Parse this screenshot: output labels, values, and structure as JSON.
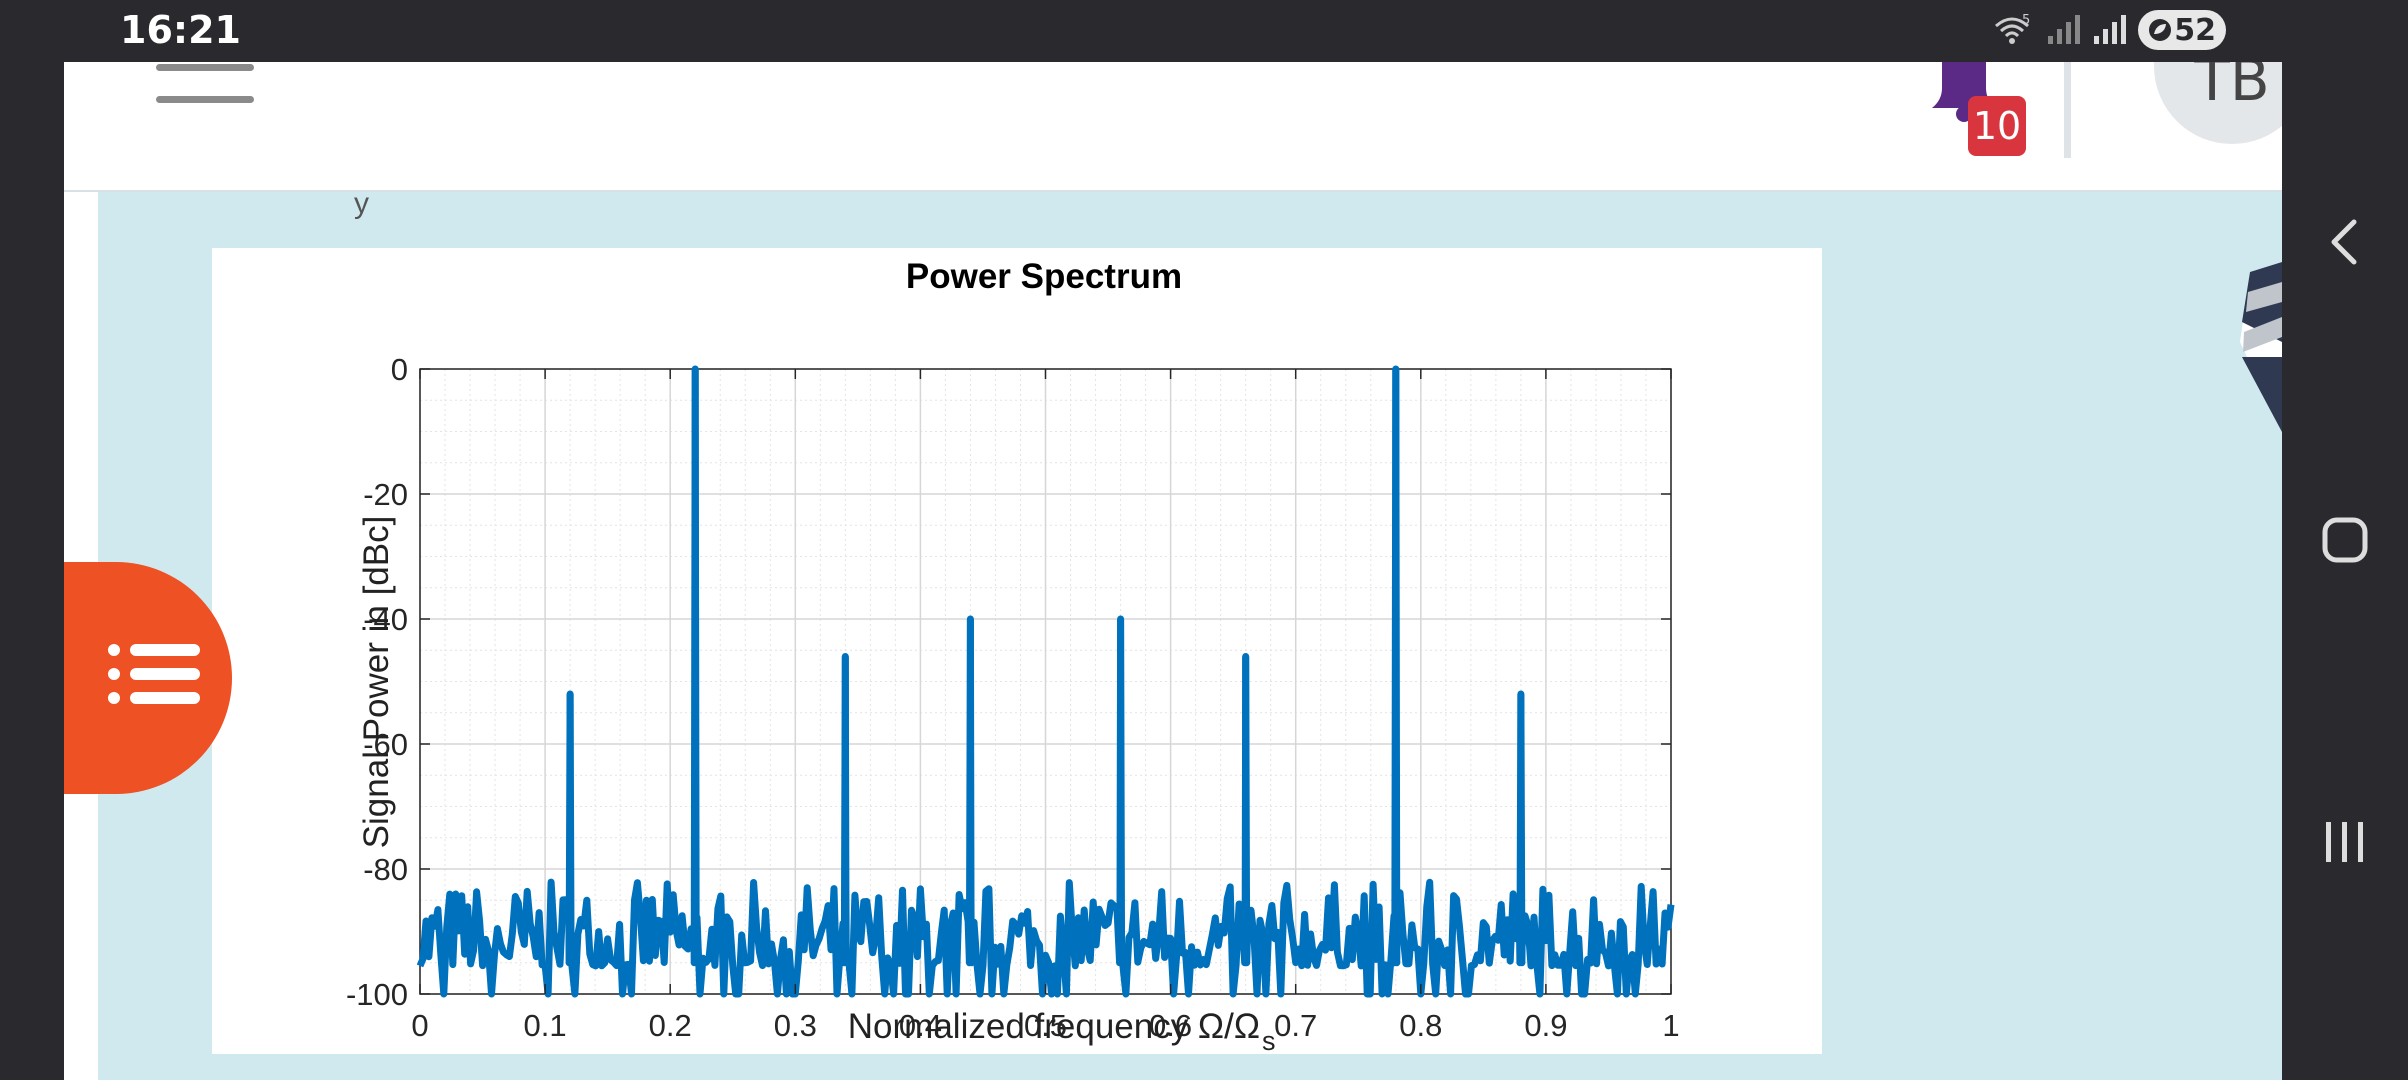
{
  "status_bar": {
    "time": "16:21",
    "wifi_badge": "5",
    "battery_level": "52",
    "icons": [
      "wifi-icon",
      "signal-icon",
      "signal-icon",
      "battery-icon"
    ]
  },
  "header": {
    "menu_icon": "hamburger-icon",
    "notification_icon": "bell-icon",
    "notification_count": "10",
    "avatar_initials": "TB",
    "colors": {
      "bell": "#5b2a86",
      "badge": "#d9353e"
    }
  },
  "content": {
    "background": "#d0e9ee",
    "partial_text": "y"
  },
  "toc_button": {
    "icon": "list-icon",
    "color": "#ee5124"
  },
  "nav_bar": {
    "icons": [
      "back-icon",
      "home-icon",
      "recents-icon"
    ]
  },
  "chart_data": {
    "type": "line",
    "title": "Power Spectrum",
    "xlabel": "Normalized frequency Ω/Ω",
    "xlabel_subscript": "s",
    "ylabel": "Signal Power in [dBc]",
    "xlim": [
      0,
      1
    ],
    "ylim": [
      -100,
      0
    ],
    "x_ticks": [
      "0",
      "0.1",
      "0.2",
      "0.3",
      "0.4",
      "0.5",
      "0.6",
      "0.7",
      "0.8",
      "0.9",
      "1"
    ],
    "y_ticks": [
      "0",
      "-20",
      "-40",
      "-60",
      "-80",
      "-100"
    ],
    "grid": true,
    "minor_grid": true,
    "line_color": "#0072bd",
    "noise_floor_range": [
      -100,
      -82
    ],
    "peaks": [
      {
        "x": 0.12,
        "y": -52
      },
      {
        "x": 0.22,
        "y": 0
      },
      {
        "x": 0.34,
        "y": -46
      },
      {
        "x": 0.44,
        "y": -40
      },
      {
        "x": 0.56,
        "y": -40
      },
      {
        "x": 0.66,
        "y": -46
      },
      {
        "x": 0.78,
        "y": 0
      },
      {
        "x": 0.88,
        "y": -52
      }
    ]
  }
}
